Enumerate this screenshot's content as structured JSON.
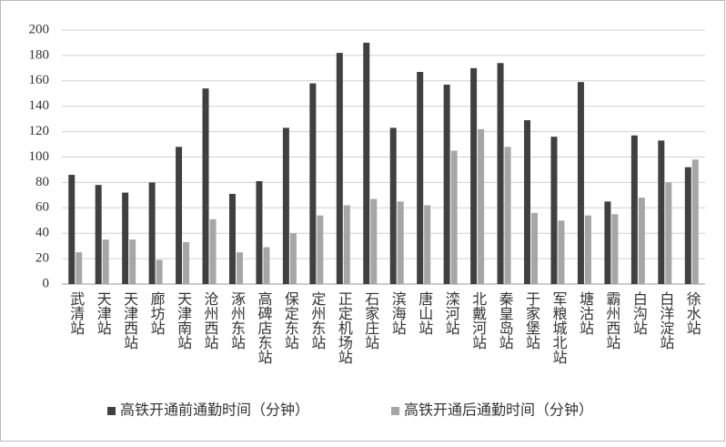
{
  "chart_data": {
    "type": "bar",
    "categories": [
      "武清站",
      "天津站",
      "天津西站",
      "廊坊站",
      "天津南站",
      "沧州西站",
      "涿州东站",
      "高碑店东站",
      "保定东站",
      "定州东站",
      "正定机场站",
      "石家庄站",
      "滨海站",
      "唐山站",
      "滦河站",
      "北戴河站",
      "秦皇岛站",
      "于家堡站",
      "军粮城北站",
      "塘沽站",
      "霸州西站",
      "白沟站",
      "白洋淀站",
      "徐水站"
    ],
    "series": [
      {
        "name": "高铁开通前通勤时间（分钟）",
        "color": "#404040",
        "values": [
          86,
          78,
          72,
          80,
          108,
          154,
          71,
          81,
          123,
          158,
          182,
          190,
          123,
          167,
          157,
          170,
          174,
          129,
          116,
          159,
          65,
          117,
          113,
          92
        ]
      },
      {
        "name": "高铁开通后通勤时间（分钟）",
        "color": "#a6a6a6",
        "values": [
          25,
          35,
          35,
          19,
          33,
          51,
          25,
          29,
          40,
          54,
          62,
          67,
          65,
          62,
          105,
          122,
          108,
          56,
          50,
          54,
          55,
          68,
          80,
          98
        ]
      }
    ],
    "ylim": [
      0,
      200
    ],
    "yticks": [
      0,
      20,
      40,
      60,
      80,
      100,
      120,
      140,
      160,
      180,
      200
    ],
    "grid": true
  }
}
